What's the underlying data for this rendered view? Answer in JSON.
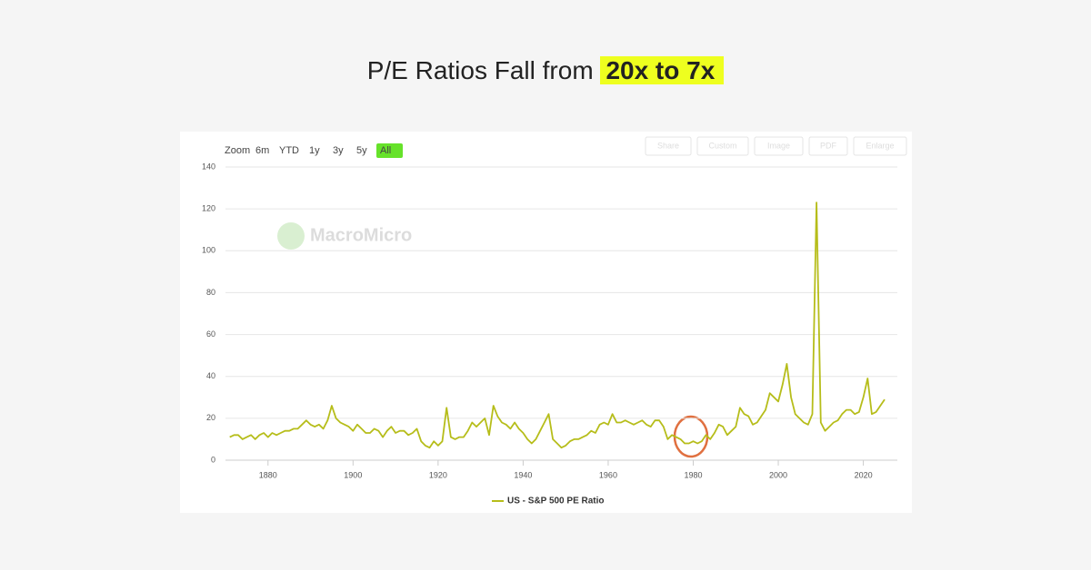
{
  "headline": {
    "text": "P/E Ratios Fall from",
    "highlight": "20x to 7x"
  },
  "toolbar": {
    "zoom_label": "Zoom",
    "ranges": [
      "6m",
      "YTD",
      "1y",
      "3y",
      "5y",
      "All"
    ],
    "actions": [
      "Share",
      "Custom",
      "Image",
      "PDF",
      "Enlarge"
    ]
  },
  "watermark": "MacroMicro",
  "chart_data": {
    "type": "line",
    "x": [
      1871,
      1872,
      1873,
      1874,
      1875,
      1876,
      1877,
      1878,
      1879,
      1880,
      1881,
      1882,
      1883,
      1884,
      1885,
      1886,
      1887,
      1888,
      1889,
      1890,
      1891,
      1892,
      1893,
      1894,
      1895,
      1896,
      1897,
      1898,
      1899,
      1900,
      1901,
      1902,
      1903,
      1904,
      1905,
      1906,
      1907,
      1908,
      1909,
      1910,
      1911,
      1912,
      1913,
      1914,
      1915,
      1916,
      1917,
      1918,
      1919,
      1920,
      1921,
      1922,
      1923,
      1924,
      1925,
      1926,
      1927,
      1928,
      1929,
      1930,
      1931,
      1932,
      1933,
      1934,
      1935,
      1936,
      1937,
      1938,
      1939,
      1940,
      1941,
      1942,
      1943,
      1944,
      1945,
      1946,
      1947,
      1948,
      1949,
      1950,
      1951,
      1952,
      1953,
      1954,
      1955,
      1956,
      1957,
      1958,
      1959,
      1960,
      1961,
      1962,
      1963,
      1964,
      1965,
      1966,
      1967,
      1968,
      1969,
      1970,
      1971,
      1972,
      1973,
      1974,
      1975,
      1976,
      1977,
      1978,
      1979,
      1980,
      1981,
      1982,
      1983,
      1984,
      1985,
      1986,
      1987,
      1988,
      1989,
      1990,
      1991,
      1992,
      1993,
      1994,
      1995,
      1996,
      1997,
      1998,
      1999,
      2000,
      2001,
      2002,
      2003,
      2004,
      2005,
      2006,
      2007,
      2008,
      2009,
      2010,
      2011,
      2012,
      2013,
      2014,
      2015,
      2016,
      2017,
      2018,
      2019,
      2020,
      2021,
      2022,
      2023,
      2024,
      2025
    ],
    "series": [
      {
        "name": "US - S&P 500 PE Ratio",
        "color": "#b6bd1a",
        "values": [
          11,
          12,
          12,
          10,
          11,
          12,
          10,
          12,
          13,
          11,
          13,
          12,
          13,
          14,
          14,
          15,
          15,
          17,
          19,
          17,
          16,
          17,
          15,
          19,
          26,
          20,
          18,
          17,
          16,
          14,
          17,
          15,
          13,
          13,
          15,
          14,
          11,
          14,
          16,
          13,
          14,
          14,
          12,
          13,
          15,
          9,
          7,
          6,
          9,
          7,
          9,
          25,
          11,
          10,
          11,
          11,
          14,
          18,
          16,
          18,
          20,
          12,
          26,
          21,
          18,
          17,
          15,
          18,
          15,
          13,
          10,
          8,
          10,
          14,
          18,
          22,
          10,
          8,
          6,
          7,
          9,
          10,
          10,
          11,
          12,
          14,
          13,
          17,
          18,
          17,
          22,
          18,
          18,
          19,
          18,
          17,
          18,
          19,
          17,
          16,
          19,
          19,
          16,
          10,
          12,
          11,
          10,
          8,
          8,
          9,
          8,
          9,
          12,
          10,
          13,
          17,
          16,
          12,
          14,
          16,
          25,
          22,
          21,
          17,
          18,
          21,
          24,
          32,
          30,
          28,
          36,
          46,
          30,
          22,
          20,
          18,
          17,
          22,
          123,
          18,
          14,
          16,
          18,
          19,
          22,
          24,
          24,
          22,
          23,
          30,
          39,
          22,
          23,
          26,
          29
        ]
      }
    ],
    "xlim": [
      1870,
      2028
    ],
    "xticks": [
      1880,
      1900,
      1920,
      1940,
      1960,
      1980,
      2000,
      2020
    ],
    "ylim": [
      0,
      140
    ],
    "yticks": [
      0,
      20,
      40,
      60,
      80,
      100,
      120,
      140
    ],
    "grid": true
  }
}
